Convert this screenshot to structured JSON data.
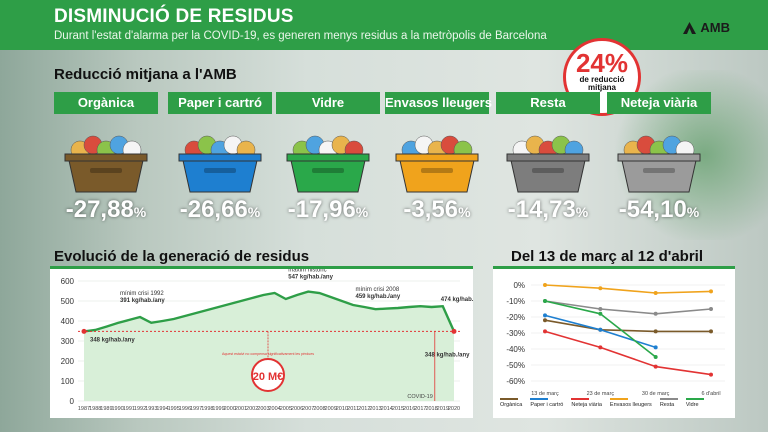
{
  "header": {
    "title": "DISMINUCIÓ DE RESIDUS",
    "subtitle": "Durant l'estat d'alarma per la COVID-19, es generen menys residus a la metròpolis de Barcelona",
    "logo_text": "AMB",
    "color": "#2e9e47"
  },
  "reduction_section": {
    "title": "Reducció mitjana a l'AMB",
    "badge_value": "24%",
    "badge_line1": "de reducció",
    "badge_line2": "mitjana",
    "categories": [
      {
        "label": "Orgànica",
        "value": "-27,88",
        "unit": "%",
        "bin_color": "#7a5a2a",
        "icon": "organic-bin-icon"
      },
      {
        "label": "Paper i cartró",
        "value": "-26,66",
        "unit": "%",
        "bin_color": "#1e7fd0",
        "icon": "paper-bin-icon"
      },
      {
        "label": "Vidre",
        "value": "-17,96",
        "unit": "%",
        "bin_color": "#2aa84a",
        "icon": "glass-bin-icon"
      },
      {
        "label": "Envasos lleugers",
        "value": "-3,56",
        "unit": "%",
        "bin_color": "#f0a31c",
        "icon": "packaging-bin-icon"
      },
      {
        "label": "Resta",
        "value": "-14,73",
        "unit": "%",
        "bin_color": "#7d7d7d",
        "icon": "rest-bin-icon"
      },
      {
        "label": "Neteja viària",
        "value": "-54,10",
        "unit": "%",
        "bin_color": "#9b9b9b",
        "icon": "street-cleaning-bin-icon"
      }
    ]
  },
  "chart_data": [
    {
      "type": "area",
      "title": "Evolució de la generació de residus",
      "x": [
        "1987",
        "1988",
        "1989",
        "1990",
        "1991",
        "1992",
        "1993",
        "1994",
        "1995",
        "1996",
        "1997",
        "1998",
        "1999",
        "2000",
        "2001",
        "2002",
        "2003",
        "2004",
        "2005",
        "2006",
        "2007",
        "2008",
        "2009",
        "2010",
        "2011",
        "2012",
        "2013",
        "2014",
        "2015",
        "2016",
        "2017",
        "2018",
        "2019",
        "2020"
      ],
      "series": [
        {
          "values": [
            348,
            355,
            372,
            390,
            405,
            420,
            391,
            400,
            410,
            425,
            440,
            455,
            470,
            485,
            500,
            515,
            530,
            540,
            510,
            530,
            547,
            540,
            520,
            500,
            480,
            470,
            459,
            462,
            465,
            470,
            474,
            470,
            474,
            348
          ],
          "color": "#2e9e47"
        }
      ],
      "reference_line": {
        "value": 348,
        "label": "348 kg/hab./any",
        "color": "#e23333"
      },
      "ylim": [
        0,
        600
      ],
      "yticks": [
        "0",
        "100",
        "200",
        "300",
        "400",
        "500",
        "600"
      ],
      "annotations": [
        {
          "text_top": "mínim crisi 1992",
          "text_val": "391 kg/hab./any"
        },
        {
          "text_top": "màxim històric",
          "text_val": "547 kg/hab./any"
        },
        {
          "text_top": "mínim crisi 2008",
          "text_val": "459 kg/hab./any"
        },
        {
          "text_top": "",
          "text_val": "474 kg/hab./any"
        },
        {
          "text_top": "",
          "text_val": "348 kg/hab./any"
        }
      ],
      "covid_label": "COVID-19",
      "savings_value": "20 M€",
      "savings_note": "Aquest estalvi no compensa significativament les pèrdues"
    },
    {
      "type": "line",
      "title": "Del 13 de març al 12 d'abril",
      "categories": [
        "13 de març",
        "23 de març",
        "30 de març",
        "6 d'abril"
      ],
      "ylim": [
        -60,
        0
      ],
      "yticks": [
        "0%",
        "-10%",
        "-20%",
        "-30%",
        "-40%",
        "-50%",
        "-60%"
      ],
      "series": [
        {
          "name": "Orgànica",
          "color": "#7a5a2a",
          "values": [
            -22,
            -28,
            -29,
            -29
          ]
        },
        {
          "name": "Paper i cartró",
          "color": "#1e7fd0",
          "values": [
            -19,
            -28,
            -39,
            null
          ]
        },
        {
          "name": "Neteja viària",
          "color": "#e23333",
          "values": [
            -29,
            -39,
            -51,
            -56
          ]
        },
        {
          "name": "Envasos lleugers",
          "color": "#f0a31c",
          "values": [
            0,
            -2,
            -5,
            -4
          ]
        },
        {
          "name": "Resta",
          "color": "#8a8a8a",
          "values": [
            -10,
            -15,
            -18,
            -15
          ]
        },
        {
          "name": "Vidre",
          "color": "#2aa84a",
          "values": [
            -10,
            -18,
            -45,
            null
          ]
        }
      ]
    }
  ]
}
